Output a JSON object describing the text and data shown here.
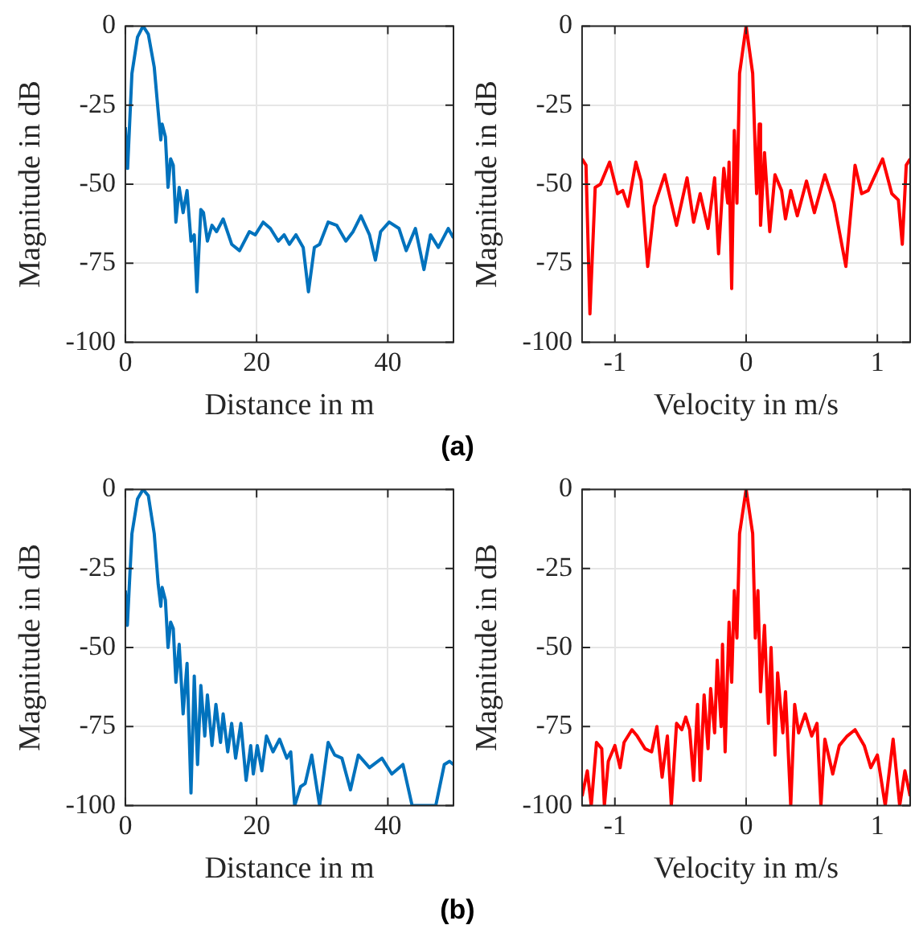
{
  "chart_data": [
    {
      "type": "line",
      "xlabel": "Distance in m",
      "ylabel": "Magnitude in dB",
      "xlim": [
        0,
        50
      ],
      "xticks": [
        0,
        20,
        40
      ],
      "ylim": [
        -100,
        0
      ],
      "yticks": [
        -100,
        -75,
        -50,
        -25,
        0
      ],
      "grid": true,
      "marker": "none",
      "line_style": "solid",
      "legend": false,
      "series": [
        {
          "color": "#0072bd",
          "x": [
            0,
            0.34,
            1.0,
            1.85,
            2.7,
            3.5,
            4.4,
            5.0,
            5.4,
            5.6,
            6.1,
            6.5,
            6.9,
            7.3,
            7.7,
            8.2,
            8.8,
            9.4,
            10.0,
            10.5,
            10.9,
            11.5,
            11.9,
            12.5,
            13.2,
            13.9,
            14.9,
            16.2,
            17.4,
            18.9,
            19.8,
            21.0,
            22.1,
            23.3,
            24.2,
            25.0,
            26.0,
            27.1,
            27.9,
            28.8,
            29.6,
            30.9,
            32.2,
            33.6,
            34.7,
            35.9,
            37.2,
            38.1,
            38.9,
            40.2,
            41.7,
            42.8,
            44.2,
            45.5,
            46.5,
            47.7,
            49.2,
            50
          ],
          "values": [
            -32,
            -45,
            -15,
            -3.5,
            0,
            -2.6,
            -13,
            -27,
            -36,
            -31,
            -35,
            -51,
            -42,
            -44,
            -62,
            -51,
            -59,
            -52,
            -68,
            -66,
            -84,
            -58,
            -59,
            -68,
            -63,
            -65,
            -61,
            -69,
            -71,
            -65,
            -66,
            -62,
            -64,
            -68,
            -66,
            -69,
            -66,
            -70,
            -84,
            -70,
            -69,
            -62,
            -63,
            -68,
            -65,
            -60,
            -66,
            -74,
            -65,
            -62,
            -64,
            -71,
            -64,
            -77,
            -66,
            -70,
            -64,
            -67
          ]
        }
      ],
      "annotations": [
        "(a)"
      ]
    },
    {
      "type": "line",
      "xlabel": "Velocity in m/s",
      "ylabel": "Magnitude in dB",
      "xlim": [
        -1.25,
        1.25
      ],
      "xticks": [
        -1,
        0,
        1
      ],
      "ylim": [
        -100,
        0
      ],
      "yticks": [
        -100,
        -75,
        -50,
        -25,
        0
      ],
      "grid": true,
      "marker": "none",
      "line_style": "solid",
      "legend": false,
      "series": [
        {
          "color": "#ff0000",
          "x": [
            -1.25,
            -1.22,
            -1.19,
            -1.15,
            -1.11,
            -1.04,
            -0.98,
            -0.94,
            -0.9,
            -0.84,
            -0.8,
            -0.75,
            -0.7,
            -0.62,
            -0.53,
            -0.45,
            -0.4,
            -0.35,
            -0.29,
            -0.24,
            -0.21,
            -0.17,
            -0.14,
            -0.13,
            -0.11,
            -0.09,
            -0.07,
            -0.05,
            0,
            0.05,
            0.08,
            0.1,
            0.11,
            0.14,
            0.18,
            0.22,
            0.27,
            0.3,
            0.34,
            0.39,
            0.46,
            0.52,
            0.6,
            0.67,
            0.76,
            0.83,
            0.88,
            0.93,
            1.04,
            1.11,
            1.16,
            1.19,
            1.22,
            1.25
          ],
          "values": [
            -42,
            -44,
            -91,
            -51,
            -50,
            -43,
            -53,
            -52,
            -57,
            -43,
            -49,
            -76,
            -57,
            -47,
            -63,
            -48,
            -62,
            -53,
            -64,
            -48,
            -72,
            -45,
            -56,
            -43,
            -83,
            -33,
            -56,
            -15,
            0,
            -15,
            -53,
            -31,
            -63,
            -40,
            -65,
            -47,
            -52,
            -61,
            -52,
            -60,
            -49,
            -59,
            -47,
            -56,
            -76,
            -44,
            -53,
            -52,
            -42,
            -53,
            -55,
            -69,
            -44,
            -42
          ]
        }
      ]
    },
    {
      "type": "line",
      "xlabel": "Distance in m",
      "ylabel": "Magnitude in dB",
      "xlim": [
        0,
        50
      ],
      "xticks": [
        0,
        20,
        40
      ],
      "ylim": [
        -100,
        0
      ],
      "yticks": [
        -100,
        -75,
        -50,
        -25,
        0
      ],
      "grid": true,
      "marker": "none",
      "line_style": "solid",
      "legend": false,
      "series": [
        {
          "color": "#0072bd",
          "x": [
            0,
            0.3,
            1.0,
            1.85,
            2.7,
            3.5,
            4.4,
            5.0,
            5.4,
            5.6,
            6.1,
            6.5,
            6.9,
            7.3,
            7.7,
            8.2,
            8.8,
            9.4,
            10.0,
            10.5,
            11.0,
            11.5,
            12.1,
            12.5,
            13.2,
            13.8,
            14.5,
            14.9,
            15.6,
            16.2,
            16.8,
            17.6,
            18.4,
            19.1,
            19.5,
            20.1,
            20.8,
            21.5,
            22.5,
            23.5,
            24.6,
            25.2,
            25.8,
            26.7,
            27.4,
            28.4,
            29.6,
            30.9,
            31.9,
            33.0,
            34.3,
            35.5,
            37.2,
            39.1,
            40.6,
            42.3,
            43.7,
            44.8,
            45.6,
            47.3,
            48.6,
            49.4,
            50
          ],
          "values": [
            -32,
            -43,
            -14,
            -3,
            0,
            -2,
            -14,
            -30,
            -37,
            -31,
            -35,
            -50,
            -42,
            -44,
            -61,
            -49,
            -71,
            -55,
            -96,
            -59,
            -87,
            -62,
            -78,
            -65,
            -81,
            -68,
            -80,
            -71,
            -83,
            -74,
            -85,
            -74,
            -92,
            -81,
            -90,
            -81,
            -89,
            -78,
            -83,
            -79,
            -85,
            -83,
            -100,
            -94,
            -93,
            -84,
            -100,
            -80,
            -84,
            -85,
            -95,
            -84,
            -88,
            -85,
            -90,
            -87,
            -100,
            -100,
            -100,
            -100,
            -87,
            -86,
            -87
          ]
        }
      ],
      "annotations": [
        "(b)"
      ]
    },
    {
      "type": "line",
      "xlabel": "Velocity in m/s",
      "ylabel": "Magnitude in dB",
      "xlim": [
        -1.25,
        1.25
      ],
      "xticks": [
        -1,
        0,
        1
      ],
      "ylim": [
        -100,
        0
      ],
      "yticks": [
        -100,
        -75,
        -50,
        -25,
        0
      ],
      "grid": true,
      "marker": "none",
      "line_style": "solid",
      "legend": false,
      "series": [
        {
          "color": "#ff0000",
          "x": [
            -1.25,
            -1.21,
            -1.18,
            -1.14,
            -1.1,
            -1.08,
            -1.05,
            -1.0,
            -0.96,
            -0.93,
            -0.87,
            -0.83,
            -0.77,
            -0.72,
            -0.68,
            -0.64,
            -0.6,
            -0.57,
            -0.53,
            -0.49,
            -0.46,
            -0.43,
            -0.4,
            -0.37,
            -0.35,
            -0.32,
            -0.29,
            -0.27,
            -0.24,
            -0.22,
            -0.19,
            -0.18,
            -0.16,
            -0.13,
            -0.11,
            -0.09,
            -0.07,
            -0.05,
            0,
            0.05,
            0.07,
            0.09,
            0.11,
            0.14,
            0.17,
            0.19,
            0.22,
            0.24,
            0.28,
            0.3,
            0.34,
            0.37,
            0.4,
            0.45,
            0.5,
            0.54,
            0.57,
            0.6,
            0.66,
            0.71,
            0.77,
            0.83,
            0.9,
            0.95,
            1.0,
            1.06,
            1.12,
            1.17,
            1.21,
            1.25
          ],
          "values": [
            -97,
            -89,
            -100,
            -80,
            -82,
            -100,
            -86,
            -81,
            -88,
            -80,
            -76,
            -78,
            -82,
            -83,
            -75,
            -91,
            -78,
            -100,
            -74,
            -76,
            -72,
            -76,
            -92,
            -68,
            -92,
            -65,
            -82,
            -63,
            -77,
            -54,
            -75,
            -49,
            -83,
            -42,
            -61,
            -32,
            -47,
            -14,
            0,
            -14,
            -47,
            -32,
            -64,
            -43,
            -74,
            -50,
            -84,
            -58,
            -77,
            -64,
            -100,
            -68,
            -77,
            -71,
            -78,
            -74,
            -100,
            -79,
            -90,
            -81,
            -78,
            -76,
            -81,
            -88,
            -84,
            -100,
            -79,
            -100,
            -89,
            -97
          ]
        }
      ]
    }
  ]
}
